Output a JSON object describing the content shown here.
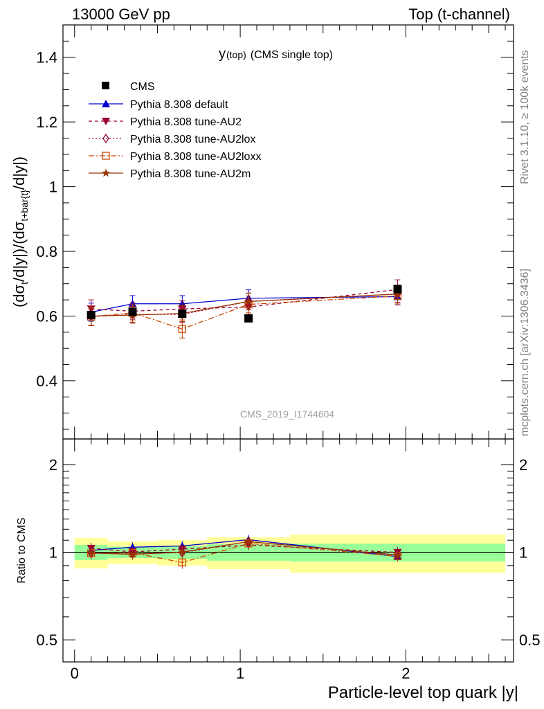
{
  "header": {
    "left": "13000 GeV pp",
    "right": "Top (t-channel)"
  },
  "plot_title": {
    "main": "y",
    "sub": "(top)",
    "rest": "(CMS single top)"
  },
  "watermark": "CMS_2019_I1744604",
  "side": {
    "rivet": "Rivet 3.1.10, ≥ 100k events",
    "mcplots": "mcplots.cern.ch [arXiv:1306.3436]"
  },
  "axes": {
    "xlabel": "Particle-level top quark |y|",
    "ylabel_main": "(dσt/d|y|)/(dσt+bar{t}/d|y|)",
    "ylabel_ratio": "Ratio to CMS",
    "main_yticks": [
      "0.4",
      "0.6",
      "0.8",
      "1",
      "1.2",
      "1.4"
    ],
    "ratio_yticks": [
      "0.5",
      "1",
      "2"
    ],
    "xticks": [
      "0",
      "1",
      "2"
    ]
  },
  "chart_data": {
    "type": "scatter",
    "x_range": [
      -0.07,
      2.65
    ],
    "main_ylim": [
      0.22,
      1.5
    ],
    "ratio_ylim": [
      0.42,
      2.45
    ],
    "ratio_log": true,
    "x_edges": [
      0,
      0.2,
      0.5,
      0.8,
      1.3,
      2.6
    ],
    "x_centers": [
      0.1,
      0.35,
      0.65,
      1.05,
      1.95
    ],
    "data": {
      "name": "CMS",
      "values": [
        0.603,
        0.613,
        0.607,
        0.593,
        0.683
      ],
      "ratio_band_inner": [
        0.06,
        0.045,
        0.05,
        0.065,
        0.07
      ],
      "ratio_band_outer": [
        0.12,
        0.09,
        0.1,
        0.125,
        0.15
      ]
    },
    "series": [
      {
        "name": "Pythia 8.308 default",
        "color": "#0000cc",
        "dash": "",
        "marker": "triangle-up",
        "values": [
          0.612,
          0.638,
          0.638,
          0.655,
          0.66
        ],
        "err": [
          0.028,
          0.025,
          0.025,
          0.026,
          0.025
        ]
      },
      {
        "name": "Pythia 8.308 tune-AU2",
        "color": "#990033",
        "dash": "5,4",
        "marker": "triangle-down",
        "values": [
          0.622,
          0.615,
          0.622,
          0.628,
          0.682
        ],
        "err": [
          0.028,
          0.025,
          0.025,
          0.026,
          0.03
        ]
      },
      {
        "name": "Pythia 8.308 tune-AU2lox",
        "color": "#990033",
        "dash": "2,3",
        "marker": "diamond",
        "values": [
          0.598,
          0.605,
          0.605,
          0.645,
          0.668
        ],
        "err": [
          0.028,
          0.025,
          0.025,
          0.026,
          0.028
        ]
      },
      {
        "name": "Pythia 8.308 tune-AU2loxx",
        "color": "#cc4400",
        "dash": "8,3,2,3",
        "marker": "square-open",
        "values": [
          0.598,
          0.61,
          0.56,
          0.636,
          0.662
        ],
        "err": [
          0.028,
          0.025,
          0.028,
          0.026,
          0.028
        ]
      },
      {
        "name": "Pythia 8.308 tune-AU2m",
        "color": "#993300",
        "dash": "",
        "marker": "star",
        "values": [
          0.6,
          0.603,
          0.608,
          0.645,
          0.668
        ],
        "err": [
          0.028,
          0.025,
          0.025,
          0.026,
          0.026
        ]
      }
    ]
  }
}
